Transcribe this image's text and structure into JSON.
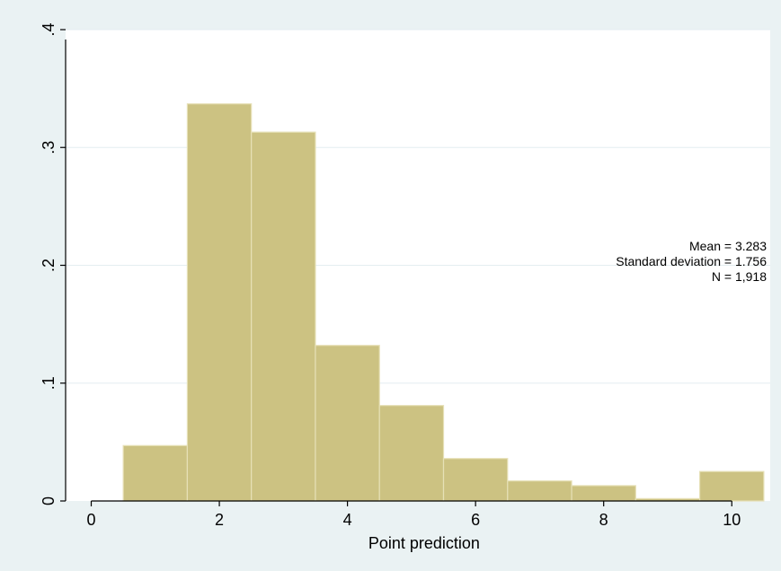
{
  "chart_data": {
    "type": "bar",
    "subtype": "histogram",
    "bin_width": 1,
    "bins": [
      {
        "x": 1,
        "value": 0.047
      },
      {
        "x": 2,
        "value": 0.337
      },
      {
        "x": 3,
        "value": 0.313
      },
      {
        "x": 4,
        "value": 0.132
      },
      {
        "x": 5,
        "value": 0.081
      },
      {
        "x": 6,
        "value": 0.036
      },
      {
        "x": 7,
        "value": 0.017
      },
      {
        "x": 8,
        "value": 0.013
      },
      {
        "x": 9,
        "value": 0.002
      },
      {
        "x": 10,
        "value": 0.025
      }
    ],
    "xlabel": "Point prediction",
    "ylabel": "",
    "xlim": [
      -0.4,
      10.6
    ],
    "ylim": [
      0,
      0.4
    ],
    "xticks": [
      0,
      2,
      4,
      6,
      8,
      10
    ],
    "xtick_labels": [
      "0",
      "2",
      "4",
      "6",
      "8",
      "10"
    ],
    "yticks": [
      0,
      0.1,
      0.2,
      0.3,
      0.4
    ],
    "ytick_labels": [
      "0",
      ".1",
      ".2",
      ".3",
      ".4"
    ],
    "grid": true,
    "annotations": [
      "Mean = 3.283",
      "Standard deviation = 1.756",
      "N = 1,918"
    ],
    "colors": {
      "bar_fill": "#ccc282",
      "bar_stroke": "#e6e0b6",
      "plot_bg": "#ffffff",
      "outer_bg": "#eaf2f3",
      "grid": "#e4eef0"
    }
  }
}
